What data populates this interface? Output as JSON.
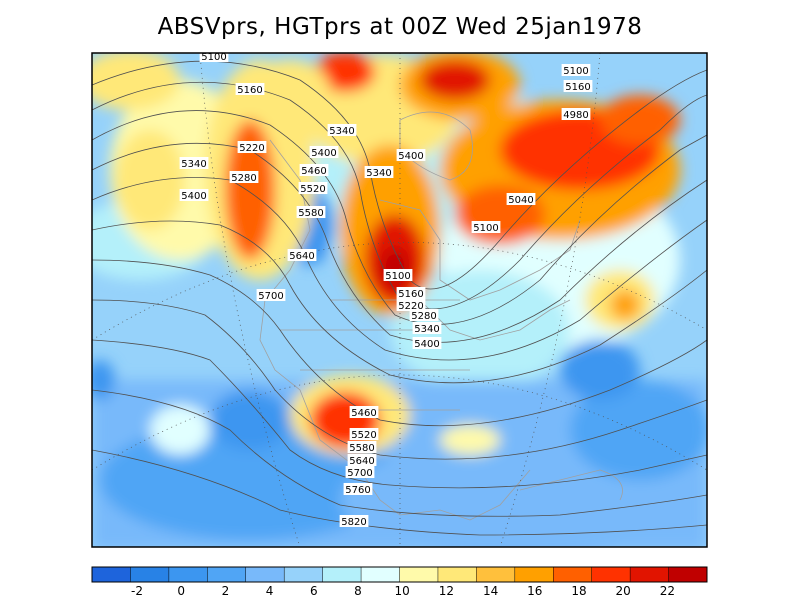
{
  "title": "ABSVprs, HGTprs at 00Z Wed 25jan1978",
  "map": {
    "contour_labels": [
      "5100",
      "5160",
      "5100",
      "5160",
      "4980",
      "5340",
      "5220",
      "5280",
      "5400",
      "5340",
      "5400",
      "5460",
      "5520",
      "5340",
      "5400",
      "5580",
      "5040",
      "5100",
      "5640",
      "5100",
      "5160",
      "5220",
      "5700",
      "5280",
      "5340",
      "5400",
      "5460",
      "5520",
      "5580",
      "5640",
      "5700",
      "5760",
      "5820"
    ]
  },
  "colorbar": {
    "tick_labels": [
      "-2",
      "0",
      "2",
      "4",
      "6",
      "8",
      "10",
      "12",
      "14",
      "16",
      "18",
      "20",
      "22"
    ],
    "colors": [
      "#1e64dc",
      "#2882e6",
      "#3c96f0",
      "#50a5f5",
      "#78b9fa",
      "#96d2fa",
      "#b4f0fa",
      "#e1ffff",
      "#fffaaa",
      "#ffe878",
      "#ffc03c",
      "#ffa000",
      "#ff6000",
      "#ff3200",
      "#e11400",
      "#c00000"
    ]
  }
}
